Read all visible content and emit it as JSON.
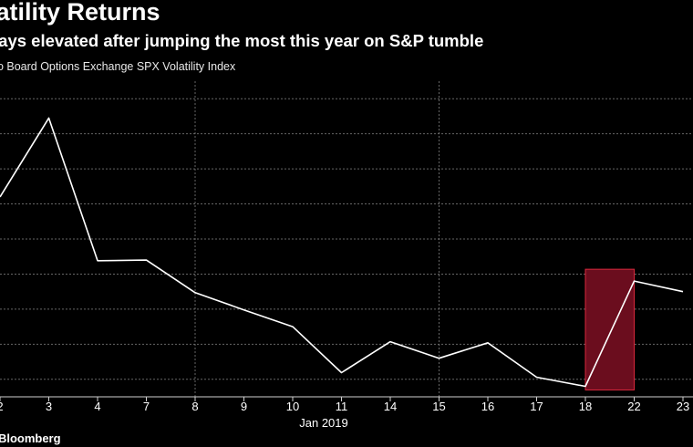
{
  "title": "latility Returns",
  "subtitle": "tays elevated after jumping the most this year on S&P tumble",
  "series_label": "go Board Options Exchange SPX Volatility Index",
  "source": ": Bloomberg",
  "colors": {
    "background": "#000000",
    "line": "#ffffff",
    "highlight_fill": "#6b0d1e",
    "highlight_stroke": "#d8283c",
    "grid": "#808080"
  },
  "chart_data": {
    "type": "line",
    "title": "latility Returns",
    "subtitle": "tays elevated after jumping the most this year on S&P tumble",
    "categories": [
      "2",
      "3",
      "4",
      "7",
      "8",
      "9",
      "10",
      "11",
      "14",
      "15",
      "16",
      "17",
      "18",
      "22",
      "23"
    ],
    "month_label": "Jan 2019",
    "series": [
      {
        "name": "go Board Options Exchange SPX Volatility Index",
        "values": [
          23.2,
          25.45,
          21.38,
          21.4,
          20.47,
          19.98,
          19.5,
          18.19,
          19.07,
          18.6,
          19.04,
          18.06,
          17.8,
          20.8,
          20.5
        ]
      }
    ],
    "ylim": [
      17.5,
      26.5
    ],
    "y_gridlines": [
      18,
      19,
      20,
      21,
      22,
      23,
      24,
      25,
      26
    ],
    "x_gridline_categories": [
      "8",
      "15"
    ],
    "highlight": {
      "from": "18",
      "to": "22"
    },
    "grid": true,
    "legend": "none"
  }
}
